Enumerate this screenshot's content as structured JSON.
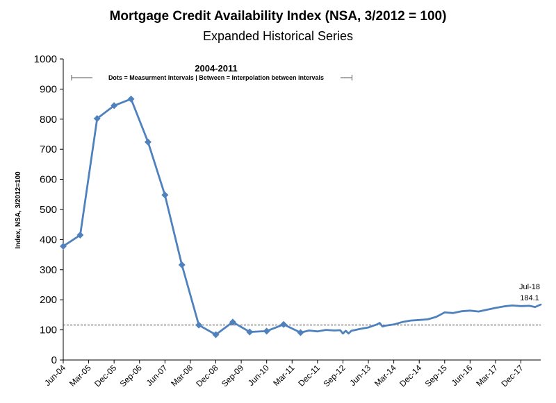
{
  "chart_data": {
    "type": "line",
    "title": "Mortgage Credit Availability Index (NSA, 3/2012 = 100)",
    "subtitle": "Expanded Historical Series",
    "ylabel": "Index, NSA, 3/2012=100",
    "ylim": [
      0,
      1000
    ],
    "yticks": [
      "0",
      "100",
      "200",
      "300",
      "400",
      "500",
      "600",
      "700",
      "800",
      "900",
      "1000"
    ],
    "xtick_labels": [
      "Jun-04",
      "Mar-05",
      "Dec-05",
      "Sep-06",
      "Jun-07",
      "Mar-08",
      "Dec-08",
      "Sep-09",
      "Jun-10",
      "Mar-11",
      "Dec-11",
      "Sep-12",
      "Jun-13",
      "Mar-14",
      "Dec-14",
      "Sep-15",
      "Jun-16",
      "Mar-17",
      "Dec-17"
    ],
    "annotation": {
      "heading": "2004-2011",
      "note": "Dots = Measurment Intervals  |  Between = Interpolation between intervals",
      "range": [
        "Jun-04",
        "Sep-12"
      ]
    },
    "reference_line": {
      "y": 116,
      "style": "dashed"
    },
    "end_label": {
      "date": "Jul-18",
      "value": "184.1"
    },
    "series": [
      {
        "color": "#4f81bd",
        "measured_points": [
          [
            "2004-06",
            378
          ],
          [
            "2004-12",
            415
          ],
          [
            "2005-06",
            802
          ],
          [
            "2005-12",
            845
          ],
          [
            "2006-06",
            867
          ],
          [
            "2006-12",
            724
          ],
          [
            "2007-06",
            548
          ],
          [
            "2007-12",
            316
          ],
          [
            "2008-06",
            116
          ],
          [
            "2008-12",
            84
          ],
          [
            "2009-06",
            126
          ],
          [
            "2009-12",
            93
          ],
          [
            "2010-06",
            96
          ],
          [
            "2010-12",
            118
          ],
          [
            "2011-06",
            91
          ]
        ],
        "monthly_points": [
          [
            "2011-06",
            91
          ],
          [
            "2011-09",
            98
          ],
          [
            "2011-12",
            95
          ],
          [
            "2012-03",
            100
          ],
          [
            "2012-06",
            98
          ],
          [
            "2012-08",
            99
          ],
          [
            "2012-09",
            88
          ],
          [
            "2012-10",
            97
          ],
          [
            "2012-11",
            88
          ],
          [
            "2012-12",
            97
          ],
          [
            "2013-03",
            103
          ],
          [
            "2013-06",
            108
          ],
          [
            "2013-09",
            118
          ],
          [
            "2013-10",
            123
          ],
          [
            "2013-11",
            111
          ],
          [
            "2013-12",
            114
          ],
          [
            "2014-03",
            118
          ],
          [
            "2014-06",
            126
          ],
          [
            "2014-09",
            131
          ],
          [
            "2014-12",
            133
          ],
          [
            "2015-03",
            135
          ],
          [
            "2015-06",
            143
          ],
          [
            "2015-09",
            158
          ],
          [
            "2015-12",
            156
          ],
          [
            "2016-03",
            162
          ],
          [
            "2016-06",
            164
          ],
          [
            "2016-09",
            161
          ],
          [
            "2016-12",
            167
          ],
          [
            "2017-03",
            173
          ],
          [
            "2017-06",
            178
          ],
          [
            "2017-09",
            181
          ],
          [
            "2017-12",
            179
          ],
          [
            "2018-03",
            180
          ],
          [
            "2018-05",
            176
          ],
          [
            "2018-07",
            184.1
          ]
        ]
      }
    ]
  }
}
